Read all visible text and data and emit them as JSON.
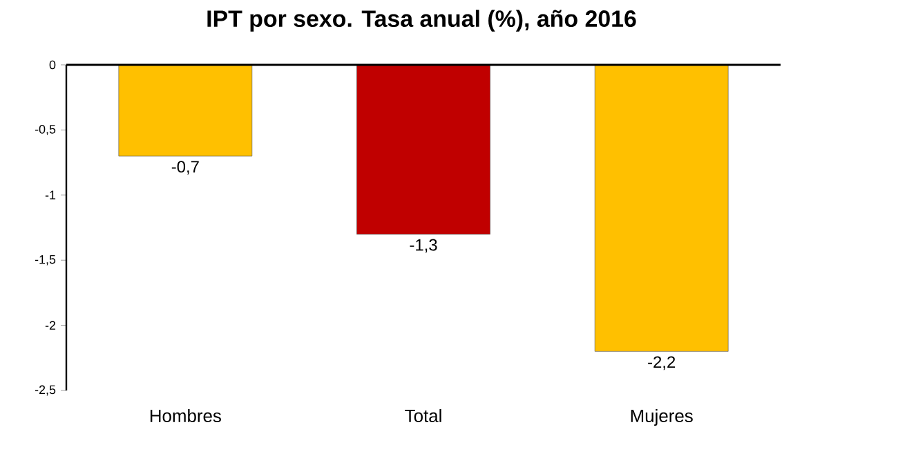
{
  "chart_data": {
    "type": "bar",
    "title": "IPT por sexo. Tasa anual (%), año 2016",
    "categories": [
      "Hombres",
      "Total",
      "Mujeres"
    ],
    "values": [
      -0.7,
      -1.3,
      -2.2
    ],
    "colors": [
      "#ffc000",
      "#c00000",
      "#ffc000"
    ],
    "value_labels": [
      "-0,7",
      "-1,3",
      "-2,2"
    ],
    "ylim": [
      -2.5,
      0
    ],
    "yticks": [
      0,
      {
        "value": -0.5,
        "label": "-0,5"
      },
      -1,
      {
        "value": -1.5,
        "label": "-1,5"
      },
      -2,
      {
        "value": -2.5,
        "label": "-2,5"
      }
    ],
    "grid": false
  }
}
